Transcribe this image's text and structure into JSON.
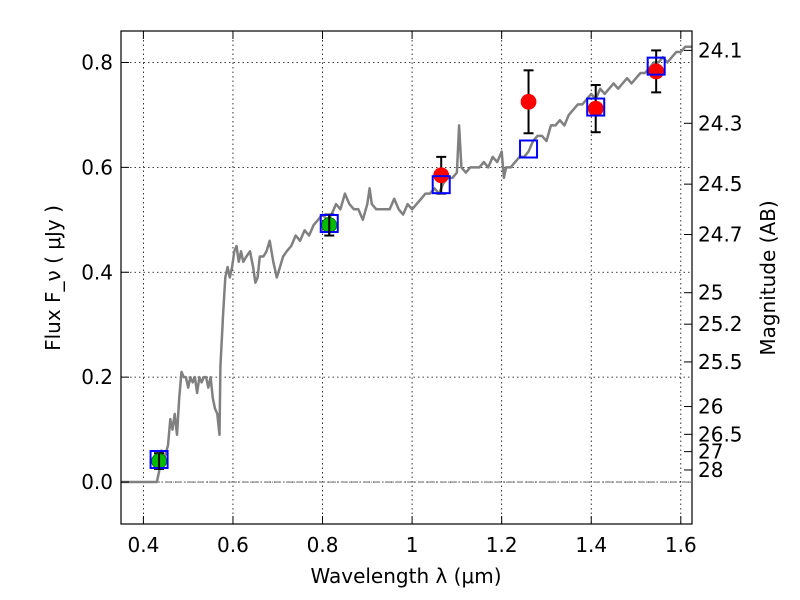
{
  "chart_data": {
    "type": "scatter",
    "title": "",
    "xlabel": "Wavelength  λ (μm)",
    "ylabel": "Flux  F_ν  ( μJy )",
    "ylabel_right": "Magnitude (AB)",
    "xlim": [
      0.35,
      1.625
    ],
    "ylim": [
      -0.08,
      0.86
    ],
    "grid": true,
    "x_ticks": [
      0.4,
      0.6,
      0.8,
      1.0,
      1.2,
      1.4,
      1.6
    ],
    "x_tick_labels": [
      "0.4",
      "0.6",
      "0.8",
      "1",
      "1.2",
      "1.4",
      "1.6"
    ],
    "y_ticks": [
      0.0,
      0.2,
      0.4,
      0.6,
      0.8
    ],
    "y_tick_labels": [
      "0.0",
      "0.2",
      "0.4",
      "0.6",
      "0.8"
    ],
    "right_ticks": [
      {
        "label": "24.1",
        "flux": 0.823
      },
      {
        "label": "24.3",
        "flux": 0.684
      },
      {
        "label": "24.5",
        "flux": 0.568
      },
      {
        "label": "24.7",
        "flux": 0.472
      },
      {
        "label": "25",
        "flux": 0.361
      },
      {
        "label": "25.2",
        "flux": 0.301
      },
      {
        "label": "25.5",
        "flux": 0.229
      },
      {
        "label": "26",
        "flux": 0.144
      },
      {
        "label": "26.5",
        "flux": 0.091
      },
      {
        "label": "27",
        "flux": 0.058
      },
      {
        "label": "28",
        "flux": 0.023
      }
    ],
    "zero_line": 0.0,
    "model_sed": {
      "color": "#808080",
      "points": [
        [
          0.35,
          0.0
        ],
        [
          0.43,
          0.0
        ],
        [
          0.435,
          0.02
        ],
        [
          0.44,
          0.06
        ],
        [
          0.445,
          0.04
        ],
        [
          0.455,
          0.07
        ],
        [
          0.46,
          0.12
        ],
        [
          0.465,
          0.1
        ],
        [
          0.47,
          0.13
        ],
        [
          0.475,
          0.09
        ],
        [
          0.48,
          0.16
        ],
        [
          0.485,
          0.21
        ],
        [
          0.49,
          0.2
        ],
        [
          0.495,
          0.2
        ],
        [
          0.5,
          0.18
        ],
        [
          0.505,
          0.2
        ],
        [
          0.51,
          0.19
        ],
        [
          0.515,
          0.2
        ],
        [
          0.52,
          0.17
        ],
        [
          0.525,
          0.2
        ],
        [
          0.53,
          0.19
        ],
        [
          0.535,
          0.2
        ],
        [
          0.54,
          0.2
        ],
        [
          0.545,
          0.18
        ],
        [
          0.55,
          0.2
        ],
        [
          0.555,
          0.16
        ],
        [
          0.56,
          0.14
        ],
        [
          0.565,
          0.13
        ],
        [
          0.57,
          0.09
        ],
        [
          0.572,
          0.22
        ],
        [
          0.578,
          0.32
        ],
        [
          0.583,
          0.39
        ],
        [
          0.588,
          0.41
        ],
        [
          0.593,
          0.39
        ],
        [
          0.598,
          0.41
        ],
        [
          0.603,
          0.44
        ],
        [
          0.608,
          0.45
        ],
        [
          0.613,
          0.42
        ],
        [
          0.618,
          0.44
        ],
        [
          0.623,
          0.42
        ],
        [
          0.63,
          0.43
        ],
        [
          0.638,
          0.44
        ],
        [
          0.645,
          0.41
        ],
        [
          0.65,
          0.38
        ],
        [
          0.655,
          0.39
        ],
        [
          0.66,
          0.43
        ],
        [
          0.668,
          0.43
        ],
        [
          0.675,
          0.44
        ],
        [
          0.682,
          0.46
        ],
        [
          0.69,
          0.42
        ],
        [
          0.698,
          0.39
        ],
        [
          0.705,
          0.41
        ],
        [
          0.712,
          0.43
        ],
        [
          0.72,
          0.44
        ],
        [
          0.73,
          0.45
        ],
        [
          0.74,
          0.47
        ],
        [
          0.75,
          0.46
        ],
        [
          0.76,
          0.48
        ],
        [
          0.77,
          0.47
        ],
        [
          0.78,
          0.49
        ],
        [
          0.79,
          0.5
        ],
        [
          0.8,
          0.51
        ],
        [
          0.81,
          0.5
        ],
        [
          0.82,
          0.51
        ],
        [
          0.83,
          0.53
        ],
        [
          0.84,
          0.52
        ],
        [
          0.85,
          0.55
        ],
        [
          0.86,
          0.53
        ],
        [
          0.87,
          0.52
        ],
        [
          0.88,
          0.52
        ],
        [
          0.89,
          0.5
        ],
        [
          0.9,
          0.53
        ],
        [
          0.905,
          0.56
        ],
        [
          0.91,
          0.53
        ],
        [
          0.92,
          0.52
        ],
        [
          0.93,
          0.52
        ],
        [
          0.94,
          0.52
        ],
        [
          0.95,
          0.52
        ],
        [
          0.96,
          0.54
        ],
        [
          0.97,
          0.52
        ],
        [
          0.98,
          0.51
        ],
        [
          0.99,
          0.53
        ],
        [
          1.0,
          0.52
        ],
        [
          1.01,
          0.53
        ],
        [
          1.02,
          0.54
        ],
        [
          1.03,
          0.55
        ],
        [
          1.04,
          0.55
        ],
        [
          1.05,
          0.56
        ],
        [
          1.06,
          0.55
        ],
        [
          1.07,
          0.57
        ],
        [
          1.08,
          0.58
        ],
        [
          1.09,
          0.58
        ],
        [
          1.1,
          0.59
        ],
        [
          1.105,
          0.68
        ],
        [
          1.11,
          0.6
        ],
        [
          1.12,
          0.59
        ],
        [
          1.13,
          0.6
        ],
        [
          1.14,
          0.6
        ],
        [
          1.15,
          0.6
        ],
        [
          1.16,
          0.61
        ],
        [
          1.17,
          0.6
        ],
        [
          1.18,
          0.62
        ],
        [
          1.19,
          0.61
        ],
        [
          1.2,
          0.63
        ],
        [
          1.205,
          0.58
        ],
        [
          1.21,
          0.6
        ],
        [
          1.22,
          0.6
        ],
        [
          1.23,
          0.61
        ],
        [
          1.24,
          0.62
        ],
        [
          1.25,
          0.62
        ],
        [
          1.26,
          0.63
        ],
        [
          1.27,
          0.65
        ],
        [
          1.28,
          0.66
        ],
        [
          1.29,
          0.66
        ],
        [
          1.3,
          0.65
        ],
        [
          1.31,
          0.68
        ],
        [
          1.32,
          0.68
        ],
        [
          1.33,
          0.69
        ],
        [
          1.34,
          0.68
        ],
        [
          1.35,
          0.7
        ],
        [
          1.36,
          0.71
        ],
        [
          1.37,
          0.72
        ],
        [
          1.38,
          0.72
        ],
        [
          1.39,
          0.73
        ],
        [
          1.4,
          0.74
        ],
        [
          1.41,
          0.73
        ],
        [
          1.42,
          0.75
        ],
        [
          1.43,
          0.74
        ],
        [
          1.44,
          0.75
        ],
        [
          1.45,
          0.76
        ],
        [
          1.46,
          0.75
        ],
        [
          1.47,
          0.76
        ],
        [
          1.48,
          0.77
        ],
        [
          1.49,
          0.76
        ],
        [
          1.5,
          0.77
        ],
        [
          1.51,
          0.78
        ],
        [
          1.52,
          0.78
        ],
        [
          1.53,
          0.79
        ],
        [
          1.54,
          0.8
        ],
        [
          1.55,
          0.8
        ],
        [
          1.56,
          0.81
        ],
        [
          1.57,
          0.8
        ],
        [
          1.58,
          0.81
        ],
        [
          1.59,
          0.82
        ],
        [
          1.6,
          0.82
        ],
        [
          1.61,
          0.83
        ],
        [
          1.625,
          0.83
        ]
      ]
    },
    "series": [
      {
        "marker": "circle",
        "color": "#00bb00",
        "points": [
          {
            "x": 0.435,
            "y": 0.04,
            "yerr": 0.015
          },
          {
            "x": 0.815,
            "y": 0.49,
            "yerr": 0.02
          }
        ]
      },
      {
        "marker": "circle",
        "color": "#ff0000",
        "points": [
          {
            "x": 1.065,
            "y": 0.585,
            "yerr": 0.035
          },
          {
            "x": 1.26,
            "y": 0.725,
            "yerr": 0.06
          },
          {
            "x": 1.41,
            "y": 0.712,
            "yerr": 0.045
          },
          {
            "x": 1.545,
            "y": 0.783,
            "yerr": 0.04
          }
        ]
      },
      {
        "marker": "open-square",
        "color": "#0000ff",
        "points": [
          {
            "x": 0.435,
            "y": 0.043
          },
          {
            "x": 0.815,
            "y": 0.493
          },
          {
            "x": 1.065,
            "y": 0.567
          },
          {
            "x": 1.26,
            "y": 0.635
          },
          {
            "x": 1.41,
            "y": 0.715
          },
          {
            "x": 1.545,
            "y": 0.793
          }
        ]
      }
    ]
  }
}
